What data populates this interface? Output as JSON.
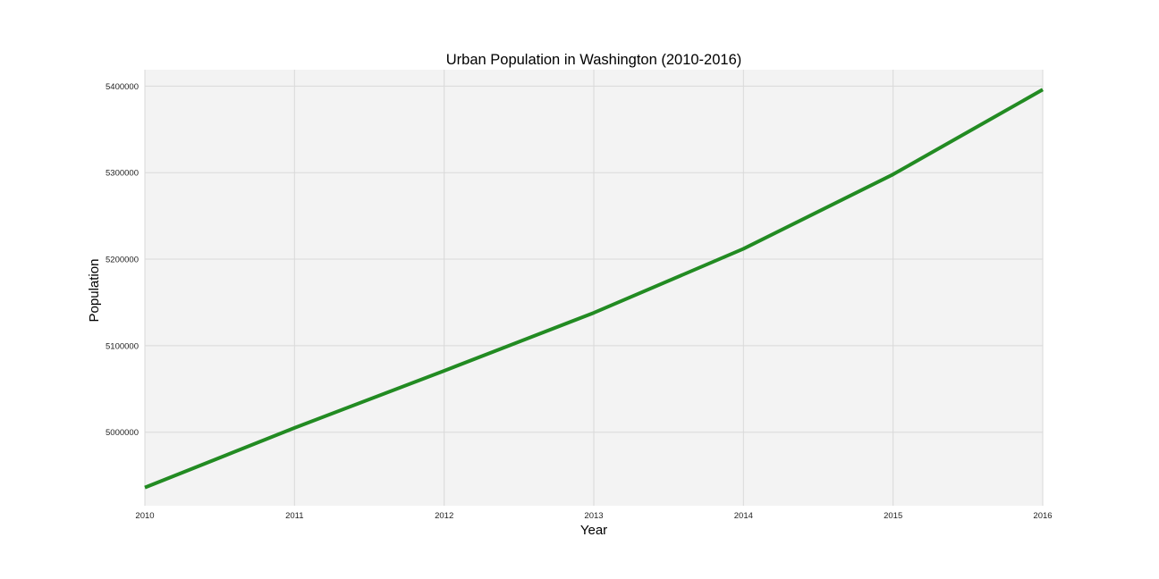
{
  "chart_data": {
    "type": "line",
    "title": "Urban Population in Washington (2010-2016)",
    "xlabel": "Year",
    "ylabel": "Population",
    "x": [
      2010,
      2011,
      2012,
      2013,
      2014,
      2015,
      2016
    ],
    "x_tick_labels": [
      "2010",
      "2011",
      "2012",
      "2013",
      "2014",
      "2015",
      "2016"
    ],
    "y_ticks": [
      5000000,
      5100000,
      5200000,
      5300000,
      5400000
    ],
    "y_tick_labels": [
      "5000000",
      "5100000",
      "5200000",
      "5300000",
      "5400000"
    ],
    "xlim": [
      2010,
      2016
    ],
    "ylim": [
      4915000,
      5419000
    ],
    "grid": true,
    "series": [
      {
        "color": "#228b22",
        "values": [
          4936000,
          5005000,
          5071000,
          5138000,
          5212000,
          5298000,
          5396000
        ]
      }
    ]
  }
}
